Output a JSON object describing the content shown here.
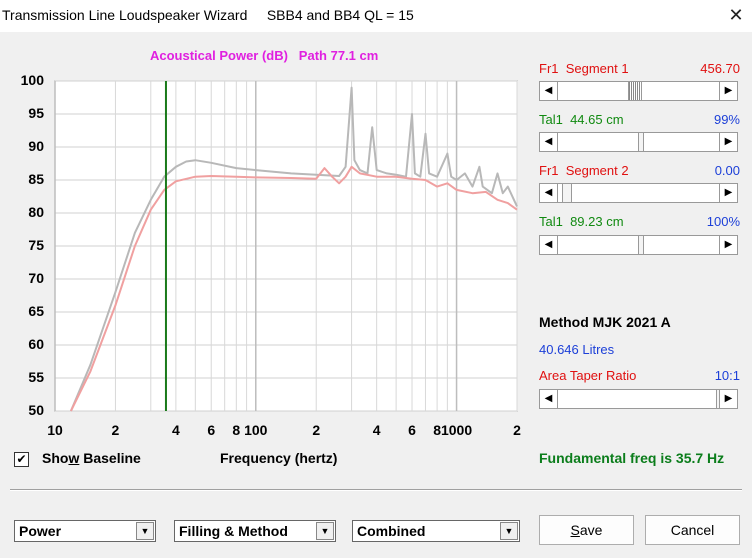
{
  "window": {
    "title": "Transmission Line Loudspeaker Wizard     SBB4 and BB4 QL = 15",
    "close_glyph": "✕"
  },
  "chart": {
    "title": "Acoustical Power (dB)   Path 77.1 cm",
    "y_ticks": [
      "100",
      "95",
      "90",
      "85",
      "80",
      "75",
      "70",
      "65",
      "60",
      "55",
      "50"
    ],
    "x_tick_labels": [
      "10",
      "2",
      "4",
      "6",
      "8",
      "100",
      "2",
      "4",
      "6",
      "8",
      "1000",
      "2"
    ],
    "xlabel": "Frequency (hertz)"
  },
  "chart_data": {
    "type": "line",
    "title": "Acoustical Power (dB)   Path 77.1 cm",
    "xlabel": "Frequency (hertz)",
    "ylabel": "",
    "x_scale": "log",
    "xlim": [
      10,
      2000
    ],
    "ylim": [
      50,
      100
    ],
    "grid": true,
    "marker_line": {
      "x": 35.7,
      "color": "#1a7a1a"
    },
    "series": [
      {
        "color": "#b8b8b8",
        "points": [
          [
            12,
            50
          ],
          [
            15,
            57
          ],
          [
            20,
            68
          ],
          [
            25,
            77
          ],
          [
            30,
            82
          ],
          [
            35,
            85.5
          ],
          [
            40,
            87
          ],
          [
            45,
            87.8
          ],
          [
            50,
            88
          ],
          [
            60,
            87.6
          ],
          [
            80,
            86.8
          ],
          [
            100,
            86.5
          ],
          [
            150,
            86
          ],
          [
            200,
            85.8
          ],
          [
            260,
            85.6
          ],
          [
            280,
            87
          ],
          [
            300,
            99
          ],
          [
            310,
            88
          ],
          [
            330,
            86.5
          ],
          [
            360,
            86
          ],
          [
            380,
            93
          ],
          [
            400,
            86.5
          ],
          [
            450,
            86
          ],
          [
            500,
            85.8
          ],
          [
            560,
            85.5
          ],
          [
            600,
            95
          ],
          [
            620,
            86
          ],
          [
            660,
            85.5
          ],
          [
            700,
            92
          ],
          [
            730,
            86
          ],
          [
            800,
            85.5
          ],
          [
            900,
            89
          ],
          [
            940,
            85.5
          ],
          [
            1000,
            85
          ],
          [
            1100,
            86
          ],
          [
            1200,
            84
          ],
          [
            1300,
            87
          ],
          [
            1350,
            84
          ],
          [
            1500,
            83
          ],
          [
            1600,
            86
          ],
          [
            1700,
            83
          ],
          [
            1800,
            84
          ],
          [
            2000,
            81
          ]
        ]
      },
      {
        "color": "#f0a0a0",
        "points": [
          [
            12,
            50
          ],
          [
            15,
            56
          ],
          [
            20,
            66
          ],
          [
            25,
            75
          ],
          [
            30,
            80.5
          ],
          [
            35,
            83.5
          ],
          [
            40,
            84.8
          ],
          [
            50,
            85.5
          ],
          [
            60,
            85.6
          ],
          [
            80,
            85.5
          ],
          [
            100,
            85.4
          ],
          [
            150,
            85.3
          ],
          [
            200,
            85.2
          ],
          [
            220,
            86.8
          ],
          [
            240,
            85.5
          ],
          [
            260,
            84.5
          ],
          [
            280,
            85.5
          ],
          [
            300,
            87
          ],
          [
            330,
            86
          ],
          [
            400,
            85.5
          ],
          [
            500,
            85.5
          ],
          [
            600,
            85.2
          ],
          [
            700,
            85
          ],
          [
            800,
            84
          ],
          [
            900,
            84.5
          ],
          [
            1000,
            83.5
          ],
          [
            1200,
            83
          ],
          [
            1400,
            83.2
          ],
          [
            1600,
            82
          ],
          [
            1800,
            81.5
          ],
          [
            2000,
            80.5
          ]
        ]
      }
    ]
  },
  "baseline": {
    "checked_glyph": "✔",
    "label_pre": "Sho",
    "label_u": "w",
    "label_post": " Baseline"
  },
  "fundamental": "Fundamental freq is 35.7 Hz",
  "controls": {
    "fr1_seg1_label": "Fr1  Segment 1",
    "fr1_seg1_value": "456.70",
    "tal1_a_label": "Tal1  44.65 cm",
    "tal1_a_value": "99%",
    "fr1_seg2_label": "Fr1  Segment 2",
    "fr1_seg2_value": "0.00",
    "tal1_b_label": "Tal1  89.23 cm",
    "tal1_b_value": "100%",
    "method": "Method MJK 2021 A",
    "litres": "40.646 Litres",
    "taper_label": "Area Taper Ratio",
    "taper_value": "10:1",
    "arrow_left": "◀",
    "arrow_right": "▶",
    "sliders": {
      "seg1": 0.45,
      "tal_a": 0.5,
      "seg2": 0.02,
      "tal_b": 0.5,
      "taper": 0.99
    }
  },
  "bottom": {
    "combo1": "Power",
    "combo2": "Filling & Method",
    "combo3": "Combined",
    "combo_arrow": "▼",
    "save_u": "S",
    "save_rest": "ave",
    "cancel": "Cancel"
  }
}
